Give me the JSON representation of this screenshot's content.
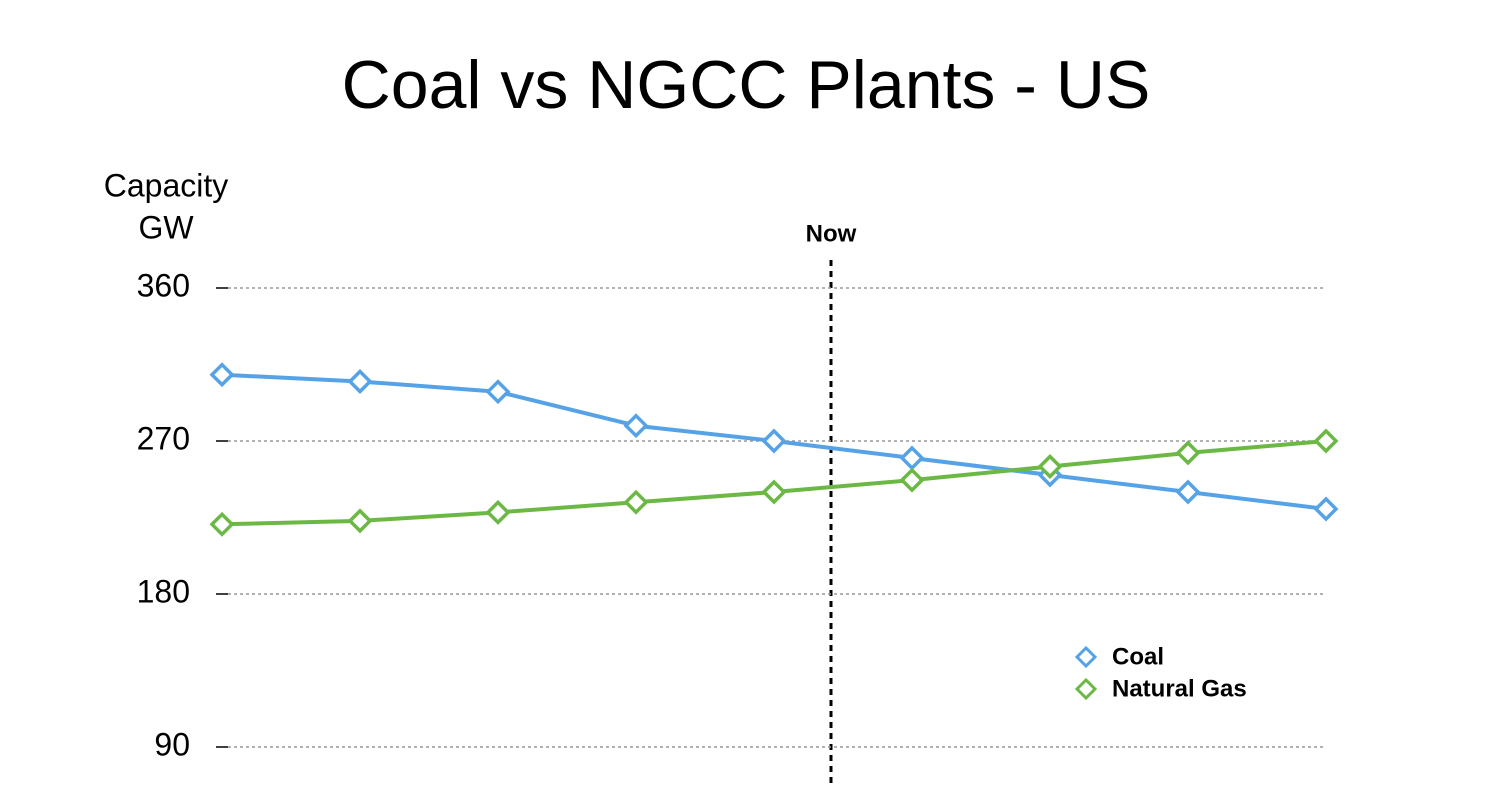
{
  "chart_data": {
    "type": "line",
    "title": "Coal vs NGCC Plants - US",
    "y_label": [
      "Capacity",
      "GW"
    ],
    "annotation": "Now",
    "categories": [
      null,
      null,
      null,
      null,
      null,
      null,
      null,
      null,
      null
    ],
    "series": [
      {
        "name": "Coal",
        "color": "#55a3e6",
        "values": [
          309,
          305,
          299,
          279,
          270,
          260,
          250,
          240,
          230
        ]
      },
      {
        "name": "Natural Gas",
        "color": "#6cb845",
        "values": [
          221,
          223,
          228,
          234,
          240,
          247,
          255,
          263,
          270
        ]
      }
    ],
    "ylim": [
      90,
      360
    ],
    "yticks": [
      90,
      180,
      270,
      360
    ],
    "grid": true,
    "legend": "lower right"
  }
}
